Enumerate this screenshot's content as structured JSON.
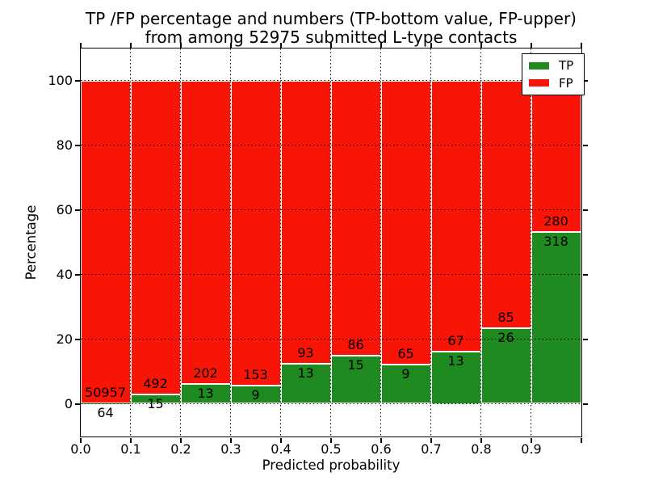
{
  "figure": {
    "title_line1": "TP /FP percentage and numbers (TP-bottom value, FP-upper)",
    "title_line2": "from among 52975 submitted L-type contacts"
  },
  "axes": {
    "xlabel": "Predicted probability",
    "ylabel": "Percentage",
    "x_tick_labels": [
      "0.0",
      "0.1",
      "0.2",
      "0.3",
      "0.4",
      "0.5",
      "0.6",
      "0.7",
      "0.8",
      "0.9"
    ],
    "y_tick_labels": [
      "0",
      "20",
      "40",
      "60",
      "80",
      "100"
    ]
  },
  "legend": {
    "items": [
      {
        "label": "TP",
        "color": "#1f8a1f"
      },
      {
        "label": "FP",
        "color": "#f91408"
      }
    ]
  },
  "chart_data": {
    "type": "bar",
    "variant": "stacked-percentage",
    "title": "TP /FP percentage and numbers (TP-bottom value, FP-upper) from among 52975 submitted L-type contacts",
    "xlabel": "Predicted probability",
    "ylabel": "Percentage",
    "xlim": [
      0.0,
      1.0
    ],
    "ylim": [
      -10,
      110
    ],
    "x_ticks": [
      0.0,
      0.1,
      0.2,
      0.3,
      0.4,
      0.5,
      0.6,
      0.7,
      0.8,
      0.9,
      1.0
    ],
    "y_ticks": [
      0,
      20,
      40,
      60,
      80,
      100
    ],
    "grid": "dotted",
    "grid_on": true,
    "legend_position": "upper right",
    "total_contacts": 52975,
    "bin_width": 0.1,
    "categories": [
      "0.0-0.1",
      "0.1-0.2",
      "0.2-0.3",
      "0.3-0.4",
      "0.4-0.5",
      "0.5-0.6",
      "0.6-0.7",
      "0.7-0.8",
      "0.8-0.9",
      "0.9-1.0"
    ],
    "series": [
      {
        "name": "TP",
        "color": "#1f8a1f",
        "counts": [
          64,
          15,
          13,
          9,
          13,
          15,
          9,
          13,
          26,
          318
        ]
      },
      {
        "name": "FP",
        "color": "#f91408",
        "counts": [
          50957,
          492,
          202,
          153,
          93,
          86,
          65,
          67,
          85,
          280
        ]
      }
    ],
    "bar_edge_color": "#ffffff",
    "bars_normalized_to": 100
  }
}
